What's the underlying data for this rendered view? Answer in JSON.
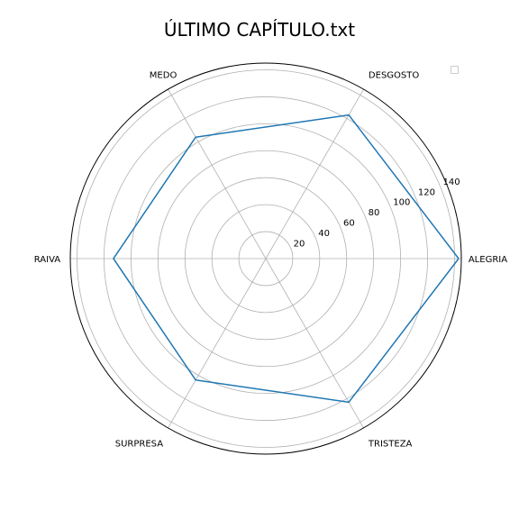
{
  "title": "ÚLTIMO CAPÍTULO.txt",
  "colors": {
    "series": "#1f77b4",
    "grid": "#b0b0b0",
    "frame": "#000000"
  },
  "chart_data": {
    "type": "radar",
    "title": "ÚLTIMO CAPÍTULO.txt",
    "categories": [
      "ALEGRIA",
      "DESGOSTO",
      "MEDO",
      "RAIVA",
      "SURPRESA",
      "TRISTEZA"
    ],
    "series": [
      {
        "values": [
          143,
          123,
          104,
          113,
          104,
          123
        ]
      }
    ],
    "rlim": [
      0,
      145
    ],
    "rticks": [
      20,
      40,
      60,
      80,
      100,
      120,
      140
    ],
    "grid": true,
    "legend": "top-right (empty)"
  }
}
